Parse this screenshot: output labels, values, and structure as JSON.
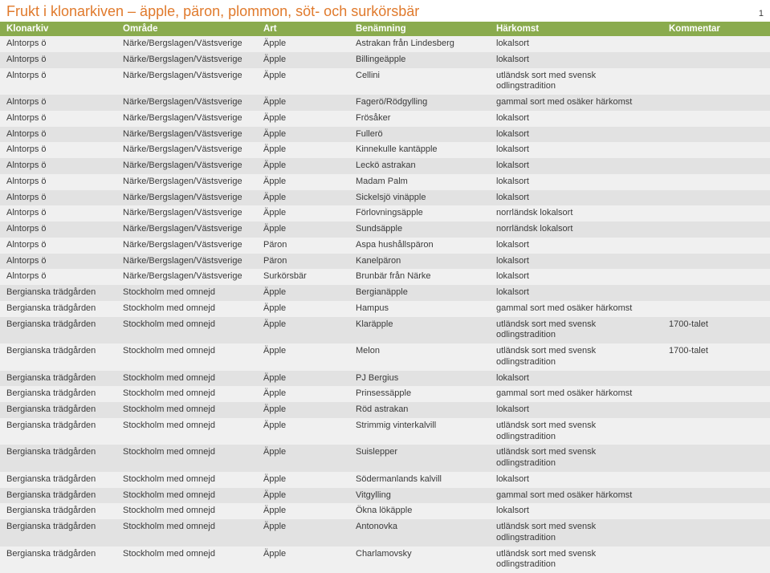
{
  "title": "Frukt i klonarkiven – äpple, päron, plommon, söt- och surkörsbär",
  "page_number": "1",
  "header_bg": "#8aab4e",
  "header_fg": "#ffffff",
  "title_color": "#e07a2c",
  "row_even_bg": "#f0f0f0",
  "row_odd_bg": "#e2e2e2",
  "columns": [
    {
      "key": "klonarkiv",
      "label": "Klonarkiv"
    },
    {
      "key": "omrade",
      "label": "Område"
    },
    {
      "key": "art",
      "label": "Art"
    },
    {
      "key": "benamning",
      "label": "Benämning"
    },
    {
      "key": "harkomst",
      "label": "Härkomst"
    },
    {
      "key": "kommentar",
      "label": "Kommentar"
    }
  ],
  "rows": [
    [
      "Alntorps ö",
      "Närke/Bergslagen/Västsverige",
      "Äpple",
      "Astrakan från Lindesberg",
      "lokalsort",
      ""
    ],
    [
      "Alntorps ö",
      "Närke/Bergslagen/Västsverige",
      "Äpple",
      "Billingeäpple",
      "lokalsort",
      ""
    ],
    [
      "Alntorps ö",
      "Närke/Bergslagen/Västsverige",
      "Äpple",
      "Cellini",
      "utländsk sort med svensk odlingstradition",
      ""
    ],
    [
      "Alntorps ö",
      "Närke/Bergslagen/Västsverige",
      "Äpple",
      "Fagerö/Rödgylling",
      "gammal sort med osäker härkomst",
      ""
    ],
    [
      "Alntorps ö",
      "Närke/Bergslagen/Västsverige",
      "Äpple",
      "Frösåker",
      "lokalsort",
      ""
    ],
    [
      "Alntorps ö",
      "Närke/Bergslagen/Västsverige",
      "Äpple",
      "Fullerö",
      "lokalsort",
      ""
    ],
    [
      "Alntorps ö",
      "Närke/Bergslagen/Västsverige",
      "Äpple",
      "Kinnekulle kantäpple",
      "lokalsort",
      ""
    ],
    [
      "Alntorps ö",
      "Närke/Bergslagen/Västsverige",
      "Äpple",
      "Leckö astrakan",
      "lokalsort",
      ""
    ],
    [
      "Alntorps ö",
      "Närke/Bergslagen/Västsverige",
      "Äpple",
      "Madam Palm",
      "lokalsort",
      ""
    ],
    [
      "Alntorps ö",
      "Närke/Bergslagen/Västsverige",
      "Äpple",
      "Sickelsjö vinäpple",
      "lokalsort",
      ""
    ],
    [
      "Alntorps ö",
      "Närke/Bergslagen/Västsverige",
      "Äpple",
      "Förlovningsäpple",
      "norrländsk lokalsort",
      ""
    ],
    [
      "Alntorps ö",
      "Närke/Bergslagen/Västsverige",
      "Äpple",
      "Sundsäpple",
      "norrländsk lokalsort",
      ""
    ],
    [
      "Alntorps ö",
      "Närke/Bergslagen/Västsverige",
      "Päron",
      "Aspa hushållspäron",
      "lokalsort",
      ""
    ],
    [
      "Alntorps ö",
      "Närke/Bergslagen/Västsverige",
      "Päron",
      "Kanelpäron",
      "lokalsort",
      ""
    ],
    [
      "Alntorps ö",
      "Närke/Bergslagen/Västsverige",
      "Surkörsbär",
      "Brunbär från Närke",
      "lokalsort",
      ""
    ],
    [
      "Bergianska trädgården",
      "Stockholm med omnejd",
      "Äpple",
      "Bergianäpple",
      "lokalsort",
      ""
    ],
    [
      "Bergianska trädgården",
      "Stockholm med omnejd",
      "Äpple",
      "Hampus",
      "gammal sort med osäker härkomst",
      ""
    ],
    [
      "Bergianska trädgården",
      "Stockholm med omnejd",
      "Äpple",
      "Klaräpple",
      "utländsk sort med svensk odlingstradition",
      "1700-talet"
    ],
    [
      "Bergianska trädgården",
      "Stockholm med omnejd",
      "Äpple",
      "Melon",
      "utländsk sort med svensk odlingstradition",
      "1700-talet"
    ],
    [
      "Bergianska trädgården",
      "Stockholm med omnejd",
      "Äpple",
      "PJ Bergius",
      "lokalsort",
      ""
    ],
    [
      "Bergianska trädgården",
      "Stockholm med omnejd",
      "Äpple",
      "Prinsessäpple",
      "gammal sort med osäker härkomst",
      ""
    ],
    [
      "Bergianska trädgården",
      "Stockholm med omnejd",
      "Äpple",
      "Röd astrakan",
      "lokalsort",
      ""
    ],
    [
      "Bergianska trädgården",
      "Stockholm med omnejd",
      "Äpple",
      "Strimmig vinterkalvill",
      "utländsk sort med svensk odlingstradition",
      ""
    ],
    [
      "Bergianska trädgården",
      "Stockholm med omnejd",
      "Äpple",
      "Suislepper",
      "utländsk sort med svensk odlingstradition",
      ""
    ],
    [
      "Bergianska trädgården",
      "Stockholm med omnejd",
      "Äpple",
      "Södermanlands kalvill",
      "lokalsort",
      ""
    ],
    [
      "Bergianska trädgården",
      "Stockholm med omnejd",
      "Äpple",
      "Vitgylling",
      "gammal sort med osäker härkomst",
      ""
    ],
    [
      "Bergianska trädgården",
      "Stockholm med omnejd",
      "Äpple",
      "Ökna lökäpple",
      "lokalsort",
      ""
    ],
    [
      "Bergianska trädgården",
      "Stockholm med omnejd",
      "Äpple",
      "Antonovka",
      "utländsk sort med svensk odlingstradition",
      ""
    ],
    [
      "Bergianska trädgården",
      "Stockholm med omnejd",
      "Äpple",
      "Charlamovsky",
      "utländsk sort med svensk odlingstradition",
      ""
    ]
  ]
}
